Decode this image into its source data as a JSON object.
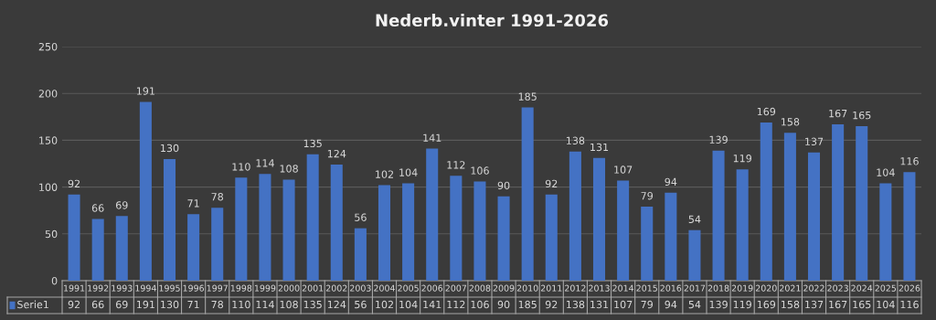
{
  "chart_data": {
    "type": "bar",
    "title": "Nederb.vinter 1991-2026",
    "categories": [
      "1991",
      "1992",
      "1993",
      "1994",
      "1995",
      "1996",
      "1997",
      "1998",
      "1999",
      "2000",
      "2001",
      "2002",
      "2003",
      "2004",
      "2005",
      "2006",
      "2007",
      "2008",
      "2009",
      "2010",
      "2011",
      "2012",
      "2013",
      "2014",
      "2015",
      "2016",
      "2017",
      "2018",
      "2019",
      "2020",
      "2021",
      "2022",
      "2023",
      "2024",
      "2025",
      "2026"
    ],
    "series": [
      {
        "name": "Serie1",
        "color": "#4472c4",
        "values": [
          92,
          66,
          69,
          191,
          130,
          71,
          78,
          110,
          114,
          108,
          135,
          124,
          56,
          102,
          104,
          141,
          112,
          106,
          90,
          185,
          92,
          138,
          131,
          107,
          79,
          94,
          54,
          139,
          119,
          169,
          158,
          137,
          167,
          165,
          104,
          116
        ],
        "value_labels": [
          "92",
          "66",
          "69",
          "191",
          "130",
          "71",
          "78",
          "110",
          "114",
          "108",
          "135",
          "124",
          "56",
          "102",
          "104",
          "141",
          "112",
          "106",
          "90",
          "185",
          "92",
          "138",
          "131",
          "107",
          "79",
          "94",
          "54",
          "139",
          "119",
          "169",
          "158",
          "137",
          "167",
          "165",
          "104",
          "116"
        ]
      }
    ],
    "annotations": [
      "92",
      "66",
      "69",
      "191",
      "130",
      "71",
      "78",
      "110",
      "114",
      "108",
      "135",
      "124",
      "56",
      "102",
      "104",
      "141",
      "112",
      "106",
      "90",
      "185",
      "92",
      "138",
      "131",
      "107",
      "79",
      "94",
      "54",
      "139",
      "119",
      "169",
      "158",
      "137",
      "167",
      "165",
      "104",
      "116"
    ],
    "ylim": [
      0,
      250
    ],
    "yticks": [
      0,
      50,
      100,
      150,
      200,
      250
    ],
    "grid": "y",
    "data_labels": true,
    "legend": "bottom left"
  }
}
